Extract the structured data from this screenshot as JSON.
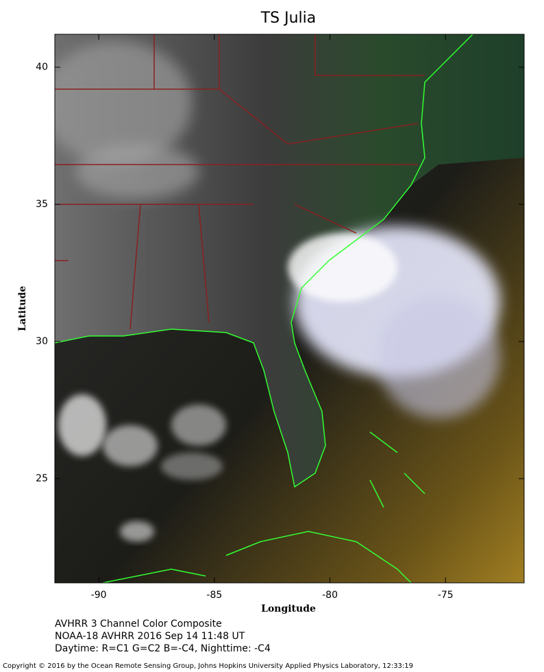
{
  "map": {
    "title": "TS Julia",
    "xlabel": "Longitude",
    "ylabel": "Latitude",
    "xlim": [
      -91.9,
      -71.6
    ],
    "ylim": [
      21.2,
      41.2
    ],
    "xticks": [
      -90,
      -85,
      -80,
      -75
    ],
    "yticks": [
      25,
      30,
      35,
      40
    ],
    "caption": [
      "AVHRR 3 Channel Color Composite",
      "NOAA-18 AVHRR 2016 Sep 14 11:48 UT",
      "Daytime: R=C1 G=C2 B=-C4, Nighttime: -C4"
    ],
    "copyright": "Copyright © 2016 by the Ocean Remote Sensing Group, Johns Hopkins University Applied Physics Laboratory, 12:33:19"
  }
}
